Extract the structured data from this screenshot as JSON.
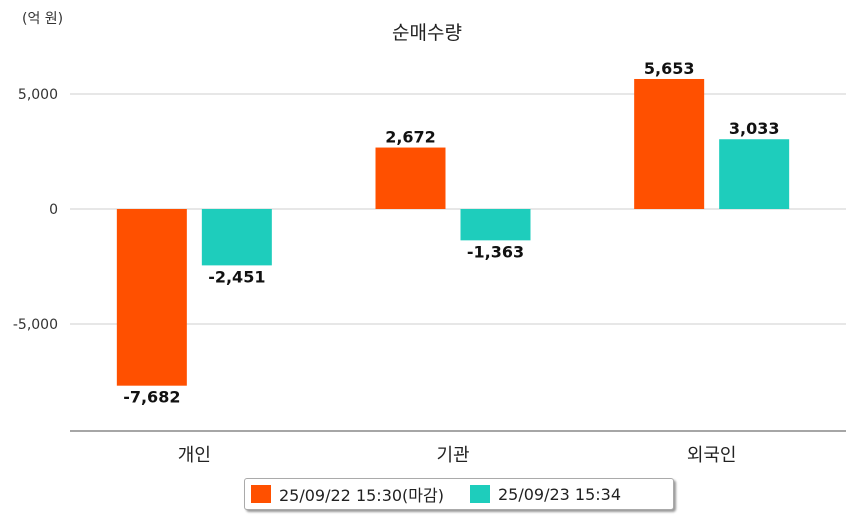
{
  "chart_data": {
    "type": "bar",
    "title": "순매수량",
    "unit_label": "(억 원)",
    "categories": [
      "개인",
      "기관",
      "외국인"
    ],
    "series": [
      {
        "name": "25/09/22 15:30(마감)",
        "color": "#ff5000",
        "values": [
          -7682,
          2672,
          5653
        ],
        "labels": [
          "-7,682",
          "2,672",
          "5,653"
        ]
      },
      {
        "name": "25/09/23 15:34",
        "color": "#1ecdbc",
        "values": [
          -2451,
          -1363,
          3033
        ],
        "labels": [
          "-2,451",
          "-1,363",
          "3,033"
        ]
      }
    ],
    "yticks": [
      5000,
      0,
      -5000
    ],
    "ytick_labels": [
      "5,000",
      "0",
      "-5,000"
    ],
    "ylim": [
      -9700,
      7300
    ],
    "grid": true,
    "legend_position": "bottom"
  }
}
